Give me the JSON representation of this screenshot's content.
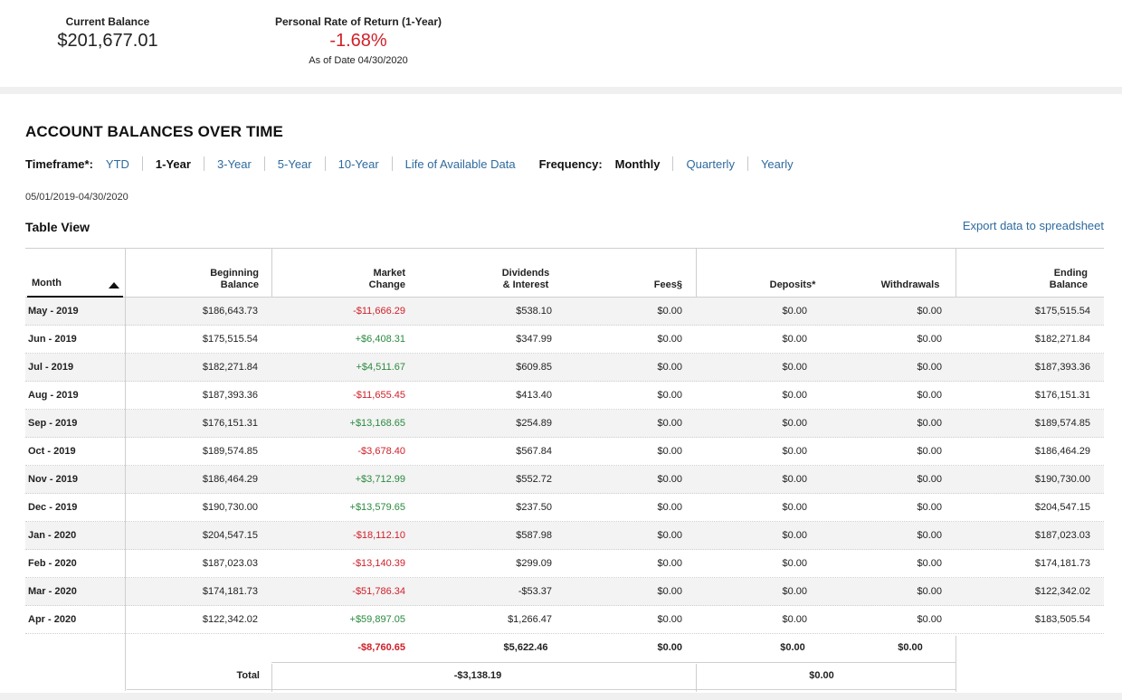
{
  "summary": {
    "balance_label": "Current Balance",
    "balance_value": "$201,677.01",
    "ror_label": "Personal Rate of Return (1-Year)",
    "ror_value": "-1.68%",
    "ror_asof": "As of Date 04/30/2020"
  },
  "section": {
    "title": "ACCOUNT BALANCES OVER TIME",
    "timeframe_label": "Timeframe*:",
    "timeframes": [
      "YTD",
      "1-Year",
      "3-Year",
      "5-Year",
      "10-Year",
      "Life of Available Data"
    ],
    "timeframe_selected": "1-Year",
    "frequency_label": "Frequency:",
    "frequencies": [
      "Monthly",
      "Quarterly",
      "Yearly"
    ],
    "frequency_selected": "Monthly",
    "date_range": "05/01/2019-04/30/2020",
    "table_view_label": "Table View",
    "export_label": "Export data to spreadsheet"
  },
  "table": {
    "headers": {
      "month": "Month",
      "beginning": "Beginning\nBalance",
      "market": "Market\nChange",
      "dividends": "Dividends\n& Interest",
      "fees": "Fees§",
      "deposits": "Deposits*",
      "withdrawals": "Withdrawals",
      "ending": "Ending\nBalance"
    },
    "rows": [
      {
        "month": "May - 2019",
        "beginning": "$186,643.73",
        "market": "-$11,666.29",
        "dividends": "$538.10",
        "fees": "$0.00",
        "deposits": "$0.00",
        "withdrawals": "$0.00",
        "ending": "$175,515.54"
      },
      {
        "month": "Jun - 2019",
        "beginning": "$175,515.54",
        "market": "+$6,408.31",
        "dividends": "$347.99",
        "fees": "$0.00",
        "deposits": "$0.00",
        "withdrawals": "$0.00",
        "ending": "$182,271.84"
      },
      {
        "month": "Jul - 2019",
        "beginning": "$182,271.84",
        "market": "+$4,511.67",
        "dividends": "$609.85",
        "fees": "$0.00",
        "deposits": "$0.00",
        "withdrawals": "$0.00",
        "ending": "$187,393.36"
      },
      {
        "month": "Aug - 2019",
        "beginning": "$187,393.36",
        "market": "-$11,655.45",
        "dividends": "$413.40",
        "fees": "$0.00",
        "deposits": "$0.00",
        "withdrawals": "$0.00",
        "ending": "$176,151.31"
      },
      {
        "month": "Sep - 2019",
        "beginning": "$176,151.31",
        "market": "+$13,168.65",
        "dividends": "$254.89",
        "fees": "$0.00",
        "deposits": "$0.00",
        "withdrawals": "$0.00",
        "ending": "$189,574.85"
      },
      {
        "month": "Oct - 2019",
        "beginning": "$189,574.85",
        "market": "-$3,678.40",
        "dividends": "$567.84",
        "fees": "$0.00",
        "deposits": "$0.00",
        "withdrawals": "$0.00",
        "ending": "$186,464.29"
      },
      {
        "month": "Nov - 2019",
        "beginning": "$186,464.29",
        "market": "+$3,712.99",
        "dividends": "$552.72",
        "fees": "$0.00",
        "deposits": "$0.00",
        "withdrawals": "$0.00",
        "ending": "$190,730.00"
      },
      {
        "month": "Dec - 2019",
        "beginning": "$190,730.00",
        "market": "+$13,579.65",
        "dividends": "$237.50",
        "fees": "$0.00",
        "deposits": "$0.00",
        "withdrawals": "$0.00",
        "ending": "$204,547.15"
      },
      {
        "month": "Jan - 2020",
        "beginning": "$204,547.15",
        "market": "-$18,112.10",
        "dividends": "$587.98",
        "fees": "$0.00",
        "deposits": "$0.00",
        "withdrawals": "$0.00",
        "ending": "$187,023.03"
      },
      {
        "month": "Feb - 2020",
        "beginning": "$187,023.03",
        "market": "-$13,140.39",
        "dividends": "$299.09",
        "fees": "$0.00",
        "deposits": "$0.00",
        "withdrawals": "$0.00",
        "ending": "$174,181.73"
      },
      {
        "month": "Mar - 2020",
        "beginning": "$174,181.73",
        "market": "-$51,786.34",
        "dividends": "-$53.37",
        "fees": "$0.00",
        "deposits": "$0.00",
        "withdrawals": "$0.00",
        "ending": "$122,342.02"
      },
      {
        "month": "Apr - 2020",
        "beginning": "$122,342.02",
        "market": "+$59,897.05",
        "dividends": "$1,266.47",
        "fees": "$0.00",
        "deposits": "$0.00",
        "withdrawals": "$0.00",
        "ending": "$183,505.54"
      }
    ],
    "totals": {
      "market": "-$8,760.65",
      "dividends": "$5,622.46",
      "fees": "$0.00",
      "deposits": "$0.00",
      "withdrawals": "$0.00",
      "label": "Total",
      "investment_total": "-$3,138.19",
      "flows_total": "$0.00"
    }
  },
  "colors": {
    "positive": "#2a8a3e",
    "negative": "#d0202a",
    "link": "#2e6a9e"
  }
}
